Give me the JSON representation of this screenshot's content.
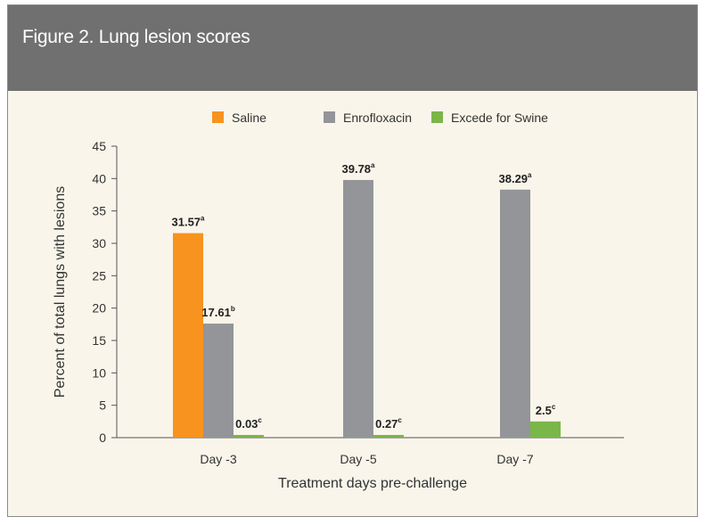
{
  "figure": {
    "title": "Figure 2. Lung lesion scores"
  },
  "chart_data": {
    "type": "bar",
    "title": "Figure 2. Lung lesion scores",
    "xlabel": "Treatment days pre-challenge",
    "ylabel": "Percent of total lungs with lesions",
    "ylim": [
      0,
      45
    ],
    "yticks": [
      0,
      5,
      10,
      15,
      20,
      25,
      30,
      35,
      40,
      45
    ],
    "categories": [
      "Day -3",
      "Day -5",
      "Day -7"
    ],
    "legend_position": "top",
    "series": [
      {
        "name": "Saline",
        "color": "#f7931e",
        "values": [
          31.57,
          null,
          null
        ],
        "labels": [
          "31.57",
          null,
          null
        ],
        "superscripts": [
          "a",
          null,
          null
        ]
      },
      {
        "name": "Enrofloxacin",
        "color": "#939598",
        "values": [
          17.61,
          39.78,
          38.29
        ],
        "labels": [
          "17.61",
          "39.78",
          "38.29"
        ],
        "superscripts": [
          "b",
          "a",
          "a"
        ]
      },
      {
        "name": "Excede for Swine",
        "color": "#7ab648",
        "values": [
          0.03,
          0.27,
          2.5
        ],
        "labels": [
          "0.03",
          "0.27",
          "2.5"
        ],
        "superscripts": [
          "c",
          "c",
          "c"
        ]
      }
    ]
  }
}
